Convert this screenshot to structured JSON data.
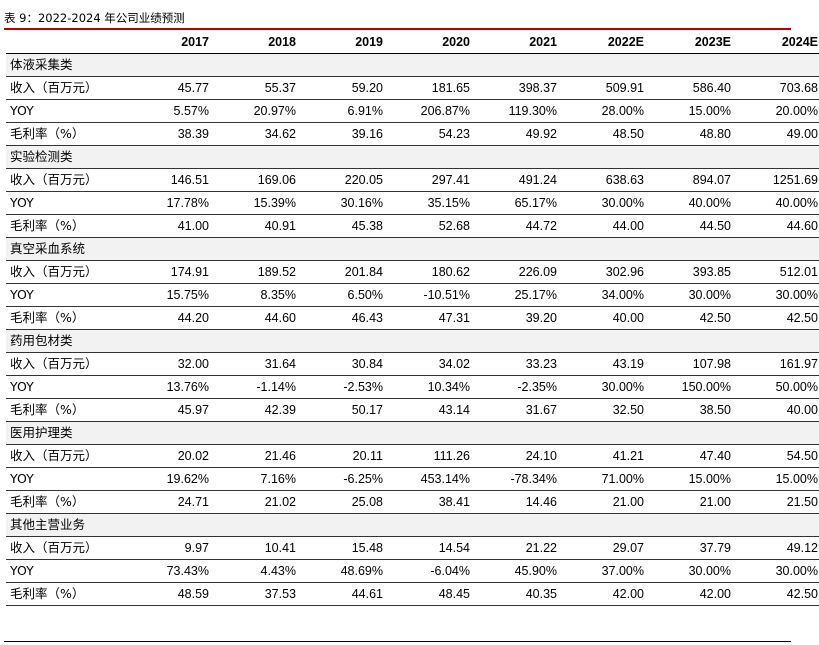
{
  "caption": "表 9：2022-2024 年公司业绩预测",
  "header": {
    "label": "",
    "years": [
      "2017",
      "2018",
      "2019",
      "2020",
      "2021",
      "2022E",
      "2023E",
      "2024E"
    ]
  },
  "row_labels": {
    "revenue": "收入（百万元）",
    "yoy": "YOY",
    "margin": "毛利率（%）"
  },
  "segments": [
    {
      "name": "体液采集类",
      "revenue": [
        "45.77",
        "55.37",
        "59.20",
        "181.65",
        "398.37",
        "509.91",
        "586.40",
        "703.68"
      ],
      "yoy": [
        "5.57%",
        "20.97%",
        "6.91%",
        "206.87%",
        "119.30%",
        "28.00%",
        "15.00%",
        "20.00%"
      ],
      "margin": [
        "38.39",
        "34.62",
        "39.16",
        "54.23",
        "49.92",
        "48.50",
        "48.80",
        "49.00"
      ]
    },
    {
      "name": "实验检测类",
      "revenue": [
        "146.51",
        "169.06",
        "220.05",
        "297.41",
        "491.24",
        "638.63",
        "894.07",
        "1251.69"
      ],
      "yoy": [
        "17.78%",
        "15.39%",
        "30.16%",
        "35.15%",
        "65.17%",
        "30.00%",
        "40.00%",
        "40.00%"
      ],
      "margin": [
        "41.00",
        "40.91",
        "45.38",
        "52.68",
        "44.72",
        "44.00",
        "44.50",
        "44.60"
      ]
    },
    {
      "name": "真空采血系统",
      "revenue": [
        "174.91",
        "189.52",
        "201.84",
        "180.62",
        "226.09",
        "302.96",
        "393.85",
        "512.01"
      ],
      "yoy": [
        "15.75%",
        "8.35%",
        "6.50%",
        "-10.51%",
        "25.17%",
        "34.00%",
        "30.00%",
        "30.00%"
      ],
      "margin": [
        "44.20",
        "44.60",
        "46.43",
        "47.31",
        "39.20",
        "40.00",
        "42.50",
        "42.50"
      ]
    },
    {
      "name": "药用包材类",
      "revenue": [
        "32.00",
        "31.64",
        "30.84",
        "34.02",
        "33.23",
        "43.19",
        "107.98",
        "161.97"
      ],
      "yoy": [
        "13.76%",
        "-1.14%",
        "-2.53%",
        "10.34%",
        "-2.35%",
        "30.00%",
        "150.00%",
        "50.00%"
      ],
      "margin": [
        "45.97",
        "42.39",
        "50.17",
        "43.14",
        "31.67",
        "32.50",
        "38.50",
        "40.00"
      ]
    },
    {
      "name": "医用护理类",
      "revenue": [
        "20.02",
        "21.46",
        "20.11",
        "111.26",
        "24.10",
        "41.21",
        "47.40",
        "54.50"
      ],
      "yoy": [
        "19.62%",
        "7.16%",
        "-6.25%",
        "453.14%",
        "-78.34%",
        "71.00%",
        "15.00%",
        "15.00%"
      ],
      "margin": [
        "24.71",
        "21.02",
        "25.08",
        "38.41",
        "14.46",
        "21.00",
        "21.00",
        "21.50"
      ]
    },
    {
      "name": "其他主营业务",
      "revenue": [
        "9.97",
        "10.41",
        "15.48",
        "14.54",
        "21.22",
        "29.07",
        "37.79",
        "49.12"
      ],
      "yoy": [
        "73.43%",
        "4.43%",
        "48.69%",
        "-6.04%",
        "45.90%",
        "37.00%",
        "30.00%",
        "30.00%"
      ],
      "margin": [
        "48.59",
        "37.53",
        "44.61",
        "48.45",
        "40.35",
        "42.00",
        "42.00",
        "42.50"
      ]
    }
  ]
}
